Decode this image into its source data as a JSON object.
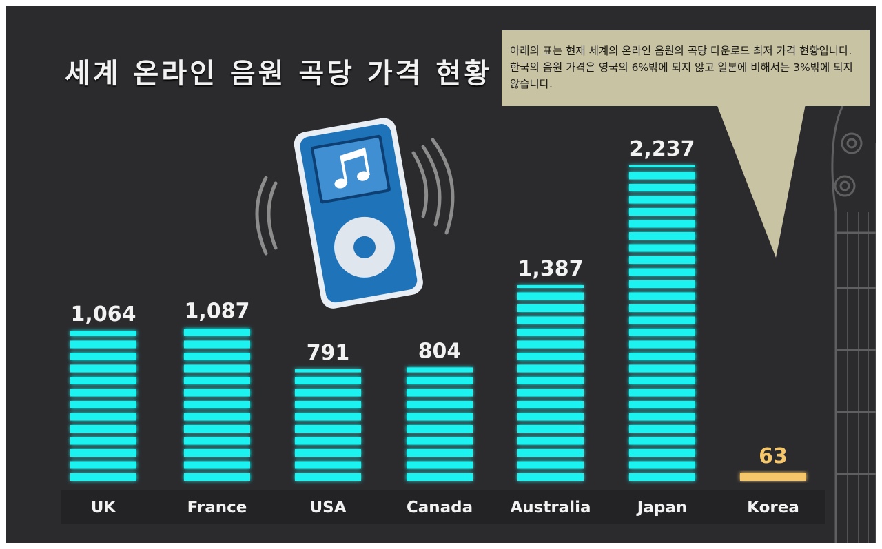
{
  "title": "세계 온라인 음원 곡당 가격 현황",
  "callout": {
    "text": "아래의 표는 현재 세계의 온라인 음원의 곡당 다운로드 최저 가격 현황입니다. 한국의 음원 가격은 영국의 6%밖에 되지 않고 일본에 비해서는 3%밖에 되지 않습니다."
  },
  "colors": {
    "background": "#2b2b2e",
    "bar": "#1ff2f0",
    "highlight_bar": "#f5c66a",
    "label": "#f2f2f2",
    "callout": "#c8c3a3"
  },
  "icons": [
    "mp3-player-icon",
    "music-note-icon",
    "sound-waves-icon",
    "guitar-headstock-icon"
  ],
  "chart_data": {
    "type": "bar",
    "categories": [
      "UK",
      "France",
      "USA",
      "Canada",
      "Australia",
      "Japan",
      "Korea"
    ],
    "values": [
      1064,
      1087,
      791,
      804,
      1387,
      2237,
      63
    ],
    "value_labels": [
      "1,064",
      "1,087",
      "791",
      "804",
      "1,387",
      "2,237",
      "63"
    ],
    "highlight": "Korea",
    "xlabel": "",
    "ylabel": "",
    "ylim": [
      0,
      2400
    ],
    "grid": false,
    "legend": "none"
  }
}
